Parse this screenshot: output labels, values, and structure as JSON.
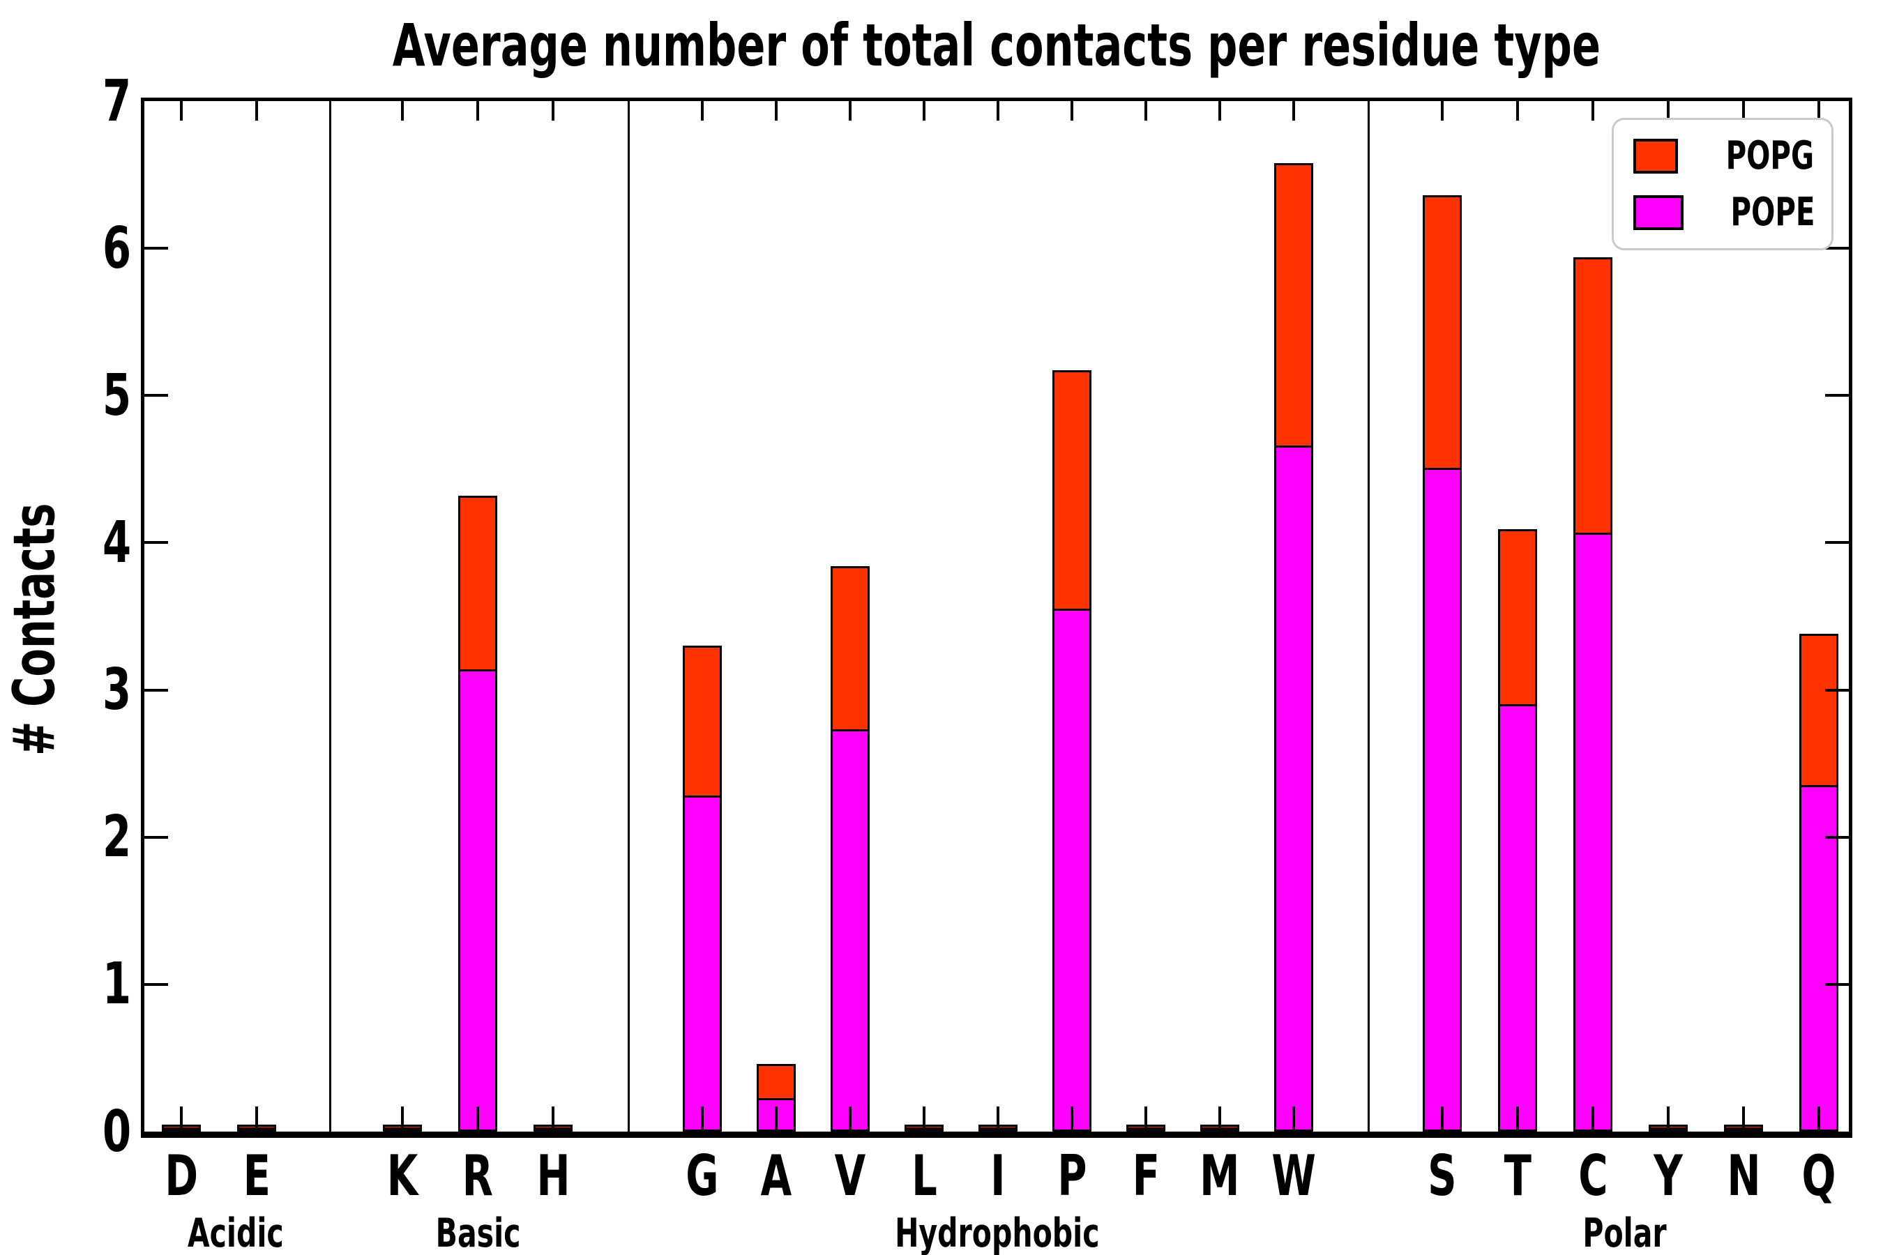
{
  "title": "Average number of total contacts per residue type",
  "y_axis": {
    "label": "# Contacts",
    "tick_labels": [
      "0",
      "1",
      "2",
      "3",
      "4",
      "5",
      "6",
      "7"
    ],
    "min": 0,
    "max": 7
  },
  "legend": {
    "position": "upper right",
    "entries": [
      {
        "label": "POPG",
        "color": "#ff3300"
      },
      {
        "label": "POPE",
        "color": "#ff00ff"
      }
    ]
  },
  "chart_data": {
    "type": "bar",
    "stacked": true,
    "title": "Average number of total contacts per residue type",
    "xlabel": "",
    "ylabel": "# Contacts",
    "ylim": [
      0,
      7
    ],
    "grid": false,
    "bar_edge_color": "#000000",
    "categories": [
      "D",
      "E",
      "K",
      "R",
      "H",
      "G",
      "A",
      "V",
      "L",
      "I",
      "P",
      "F",
      "M",
      "W",
      "S",
      "T",
      "C",
      "Y",
      "N",
      "Q"
    ],
    "groups": [
      {
        "name": "Acidic",
        "residues": [
          "D",
          "E"
        ]
      },
      {
        "name": "Basic",
        "residues": [
          "K",
          "R",
          "H"
        ]
      },
      {
        "name": "Hydrophobic",
        "residues": [
          "G",
          "A",
          "V",
          "L",
          "I",
          "P",
          "F",
          "M",
          "W"
        ]
      },
      {
        "name": "Polar",
        "residues": [
          "S",
          "T",
          "C",
          "Y",
          "N",
          "Q"
        ]
      }
    ],
    "series": [
      {
        "name": "POPE",
        "color": "#ff00ff",
        "values": [
          0.01,
          0.01,
          0.01,
          3.14,
          0.01,
          2.28,
          0.23,
          2.73,
          0.01,
          0.01,
          3.55,
          0.01,
          0.01,
          4.66,
          4.51,
          2.9,
          4.07,
          0.01,
          0.01,
          2.35
        ]
      },
      {
        "name": "POPG",
        "color": "#ff3300",
        "values": [
          0.01,
          0.01,
          0.01,
          1.18,
          0.01,
          1.02,
          0.23,
          1.11,
          0.01,
          0.01,
          1.62,
          0.01,
          0.01,
          1.92,
          1.85,
          1.19,
          1.87,
          0.01,
          0.01,
          1.03
        ]
      }
    ]
  }
}
